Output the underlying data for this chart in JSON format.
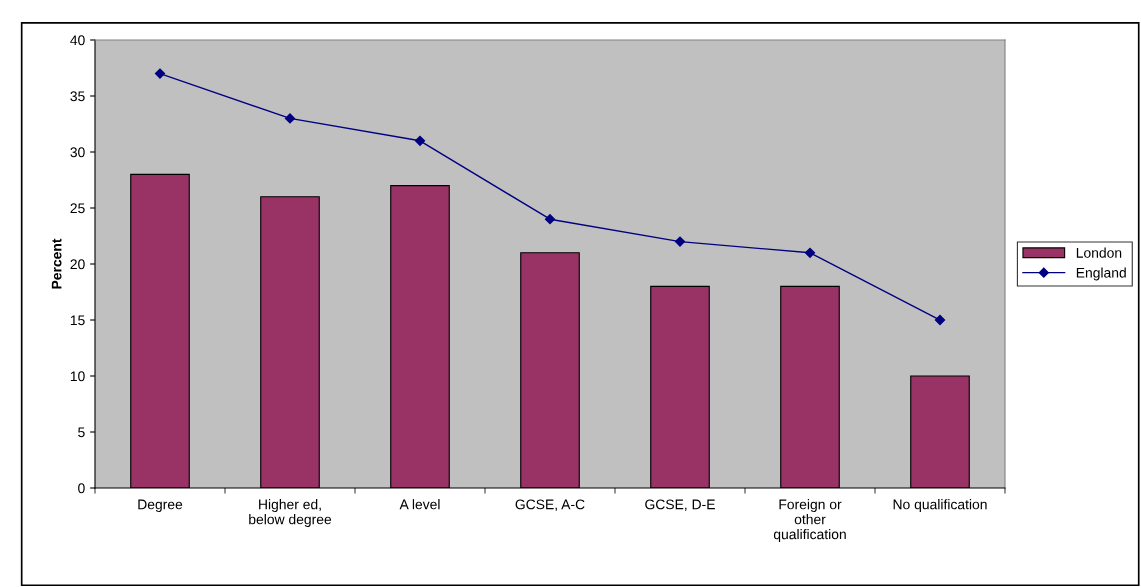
{
  "chart_data": {
    "type": "bar",
    "ylabel": "Percent",
    "categories": [
      "Degree",
      "Higher ed,\nbelow degree",
      "A level",
      "GCSE, A-C",
      "GCSE, D-E",
      "Foreign or\nother\nqualification",
      "No qualification"
    ],
    "series": [
      {
        "name": "London",
        "color": "#993366",
        "values": [
          28,
          26,
          27,
          21,
          18,
          18,
          10
        ]
      },
      {
        "name": "England",
        "type": "line",
        "color": "#000080",
        "marker": "diamond",
        "values": [
          37,
          33,
          31,
          24,
          22,
          21,
          15
        ]
      }
    ],
    "ylim": [
      0,
      40
    ],
    "yticks": [
      0,
      5,
      10,
      15,
      20,
      25,
      30,
      35,
      40
    ],
    "grid": false,
    "legend": "right"
  }
}
